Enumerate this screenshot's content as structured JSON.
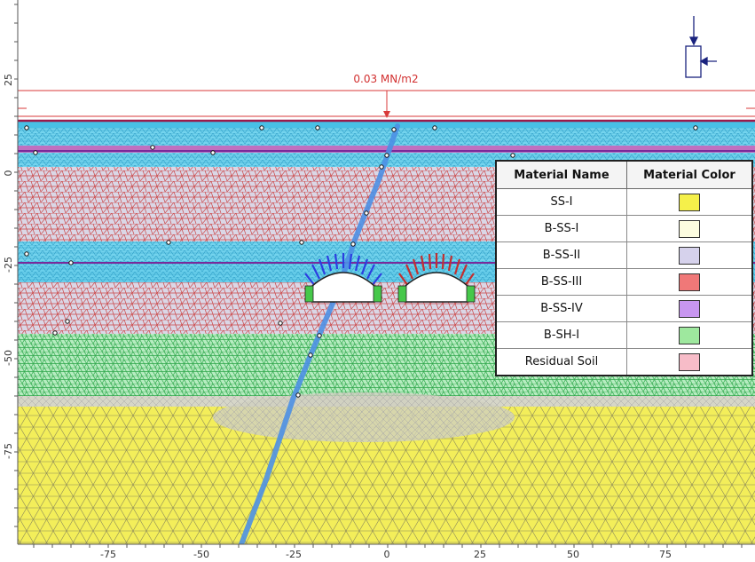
{
  "load_label": "0.03 MN/m2",
  "colors": {
    "load_line": "#d83a3a",
    "mesh_yellow": "#f3ee5a",
    "mesh_cyan": "#48c0e6",
    "mesh_red": "#cc4646",
    "mesh_green": "#3fcf62",
    "mesh_purple": "#c070c0",
    "mesh_lavender": "#cfcbe0",
    "fault_blue": "#4c90e4",
    "bolt_blue": "#2c3ee0",
    "bolt_red": "#c23030"
  },
  "legend": {
    "header_name": "Material Name",
    "header_color": "Material Color",
    "rows": [
      {
        "name": "SS-I",
        "color": "#f5f04a"
      },
      {
        "name": "B-SS-I",
        "color": "#fcfce0"
      },
      {
        "name": "B-SS-II",
        "color": "#d6d2ec"
      },
      {
        "name": "B-SS-III",
        "color": "#f07878"
      },
      {
        "name": "B-SS-IV",
        "color": "#c896f0"
      },
      {
        "name": "B-SH-I",
        "color": "#9ee89e"
      },
      {
        "name": "Residual Soil",
        "color": "#f7bcc8"
      }
    ]
  },
  "axes": {
    "x_ticks": [
      "-75",
      "-50",
      "-25",
      "0",
      "25",
      "50",
      "75"
    ],
    "y_ticks": [
      "25",
      "0",
      "-25",
      "-50",
      "-75"
    ]
  },
  "icons": {
    "support": "boundary-support-icon"
  }
}
